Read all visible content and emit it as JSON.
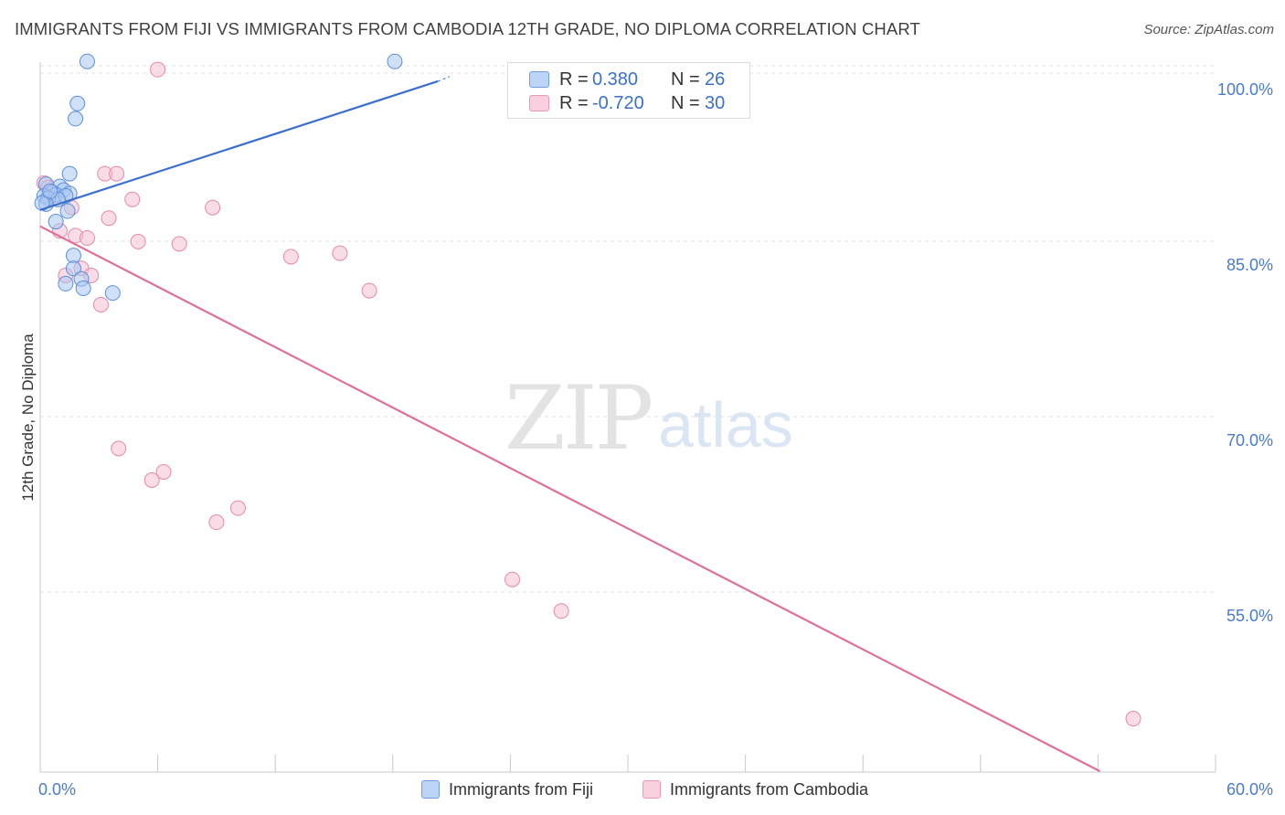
{
  "title": "IMMIGRANTS FROM FIJI VS IMMIGRANTS FROM CAMBODIA 12TH GRADE, NO DIPLOMA CORRELATION CHART",
  "source": "Source: ZipAtlas.com",
  "watermark": {
    "zip": "ZIP",
    "atlas": "atlas"
  },
  "legend": {
    "fiji": {
      "r_label": "R =",
      "r_value": "0.380",
      "n_label": "N =",
      "n_value": "26"
    },
    "cambodia": {
      "r_label": "R =",
      "r_value": "-0.720",
      "n_label": "N =",
      "n_value": "30"
    }
  },
  "bottom_legend": {
    "fiji": "Immigrants from Fiji",
    "cambodia": "Immigrants from Cambodia"
  },
  "colors": {
    "fiji_fill": "#a9c7f0",
    "fiji_stroke": "#5b8fd8",
    "fiji_line": "#3a6fcf",
    "cambodia_fill": "#f6bfd1",
    "cambodia_stroke": "#e48aaa",
    "cambodia_line": "#e06f9c",
    "grid": "#e2e2e2",
    "tick_text": "#4a7bc8"
  },
  "chart_data": {
    "type": "scatter",
    "title": "IMMIGRANTS FROM FIJI VS IMMIGRANTS FROM CAMBODIA 12TH GRADE, NO DIPLOMA CORRELATION CHART",
    "xlabel": "",
    "ylabel": "12th Grade, No Diploma",
    "xlim": [
      0,
      60
    ],
    "ylim": [
      40.5,
      101.5
    ],
    "x_tick_labels": [
      "0.0%",
      "60.0%"
    ],
    "y_ticks": [
      55,
      70,
      85,
      100
    ],
    "y_tick_labels": [
      "55.0%",
      "70.0%",
      "85.0%",
      "100.0%"
    ],
    "grid": true,
    "series": [
      {
        "name": "Immigrants from Fiji",
        "r": 0.38,
        "n": 26,
        "trend": {
          "x": [
            0.0,
            20.3
          ],
          "y": [
            88.3,
            99.3
          ]
        },
        "trend_ext": {
          "x": [
            20.3,
            20.9
          ],
          "y": [
            99.3,
            99.7
          ]
        },
        "points": [
          {
            "x": 2.4,
            "y": 101.0
          },
          {
            "x": 18.1,
            "y": 101.0
          },
          {
            "x": 1.9,
            "y": 97.4
          },
          {
            "x": 1.8,
            "y": 96.1
          },
          {
            "x": 1.5,
            "y": 91.4
          },
          {
            "x": 0.3,
            "y": 90.5
          },
          {
            "x": 1.0,
            "y": 90.3
          },
          {
            "x": 1.2,
            "y": 90.0
          },
          {
            "x": 0.6,
            "y": 89.8
          },
          {
            "x": 1.5,
            "y": 89.7
          },
          {
            "x": 0.2,
            "y": 89.5
          },
          {
            "x": 0.8,
            "y": 89.6
          },
          {
            "x": 1.3,
            "y": 89.5
          },
          {
            "x": 0.4,
            "y": 89.3
          },
          {
            "x": 0.9,
            "y": 89.2
          },
          {
            "x": 0.3,
            "y": 88.8
          },
          {
            "x": 0.1,
            "y": 88.9
          },
          {
            "x": 1.4,
            "y": 88.2
          },
          {
            "x": 0.8,
            "y": 87.3
          },
          {
            "x": 1.7,
            "y": 84.4
          },
          {
            "x": 1.7,
            "y": 83.3
          },
          {
            "x": 2.1,
            "y": 82.4
          },
          {
            "x": 1.3,
            "y": 82.0
          },
          {
            "x": 2.2,
            "y": 81.6
          },
          {
            "x": 3.7,
            "y": 81.2
          },
          {
            "x": 0.5,
            "y": 89.9
          }
        ]
      },
      {
        "name": "Immigrants from Cambodia",
        "r": -0.72,
        "n": 30,
        "trend": {
          "x": [
            0.0,
            54.1
          ],
          "y": [
            86.9,
            40.3
          ]
        },
        "points": [
          {
            "x": 6.0,
            "y": 100.3
          },
          {
            "x": 0.2,
            "y": 90.6
          },
          {
            "x": 0.4,
            "y": 90.2
          },
          {
            "x": 3.3,
            "y": 91.4
          },
          {
            "x": 3.9,
            "y": 91.4
          },
          {
            "x": 4.7,
            "y": 89.2
          },
          {
            "x": 0.7,
            "y": 89.3
          },
          {
            "x": 8.8,
            "y": 88.5
          },
          {
            "x": 1.6,
            "y": 88.5
          },
          {
            "x": 3.5,
            "y": 87.6
          },
          {
            "x": 1.0,
            "y": 86.5
          },
          {
            "x": 1.8,
            "y": 86.1
          },
          {
            "x": 2.4,
            "y": 85.9
          },
          {
            "x": 5.0,
            "y": 85.6
          },
          {
            "x": 7.1,
            "y": 85.4
          },
          {
            "x": 12.8,
            "y": 84.3
          },
          {
            "x": 15.3,
            "y": 84.6
          },
          {
            "x": 2.1,
            "y": 83.3
          },
          {
            "x": 1.3,
            "y": 82.7
          },
          {
            "x": 2.6,
            "y": 82.7
          },
          {
            "x": 16.8,
            "y": 81.4
          },
          {
            "x": 3.1,
            "y": 80.2
          },
          {
            "x": 4.0,
            "y": 67.9
          },
          {
            "x": 6.3,
            "y": 65.9
          },
          {
            "x": 5.7,
            "y": 65.2
          },
          {
            "x": 10.1,
            "y": 62.8
          },
          {
            "x": 9.0,
            "y": 61.6
          },
          {
            "x": 24.1,
            "y": 56.7
          },
          {
            "x": 26.6,
            "y": 54.0
          },
          {
            "x": 55.8,
            "y": 44.8
          }
        ]
      }
    ]
  }
}
